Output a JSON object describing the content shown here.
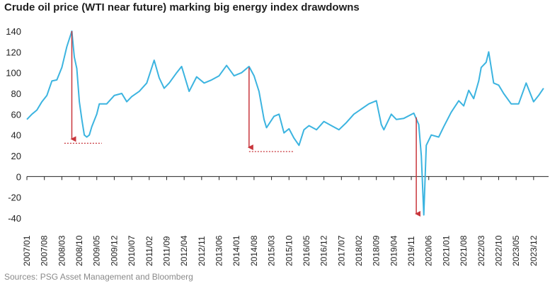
{
  "title": "Crude oil price (WTI near future) marking big energy index drawdowns",
  "source": "Sources: PSG Asset Management and Bloomberg",
  "colors": {
    "series": "#3cb4e0",
    "annotation": "#c8363c",
    "zero_line": "#222222",
    "grid": "#d9d9d9"
  },
  "chart_data": {
    "type": "line",
    "title": "Crude oil price (WTI near future) marking big energy index drawdowns",
    "xlabel": "",
    "ylabel": "",
    "ylim": [
      -40,
      140
    ],
    "y_ticks": [
      140,
      120,
      100,
      80,
      60,
      40,
      20,
      0,
      -20,
      -40
    ],
    "x_tick_labels": [
      "2007/01",
      "2007/08",
      "2008/03",
      "2008/10",
      "2009/05",
      "2009/12",
      "2010/07",
      "2011/02",
      "2011/09",
      "2012/04",
      "2012/11",
      "2013/06",
      "2014/01",
      "2014/08",
      "2015/03",
      "2015/10",
      "2016/05",
      "2016/12",
      "2017/07",
      "2018/02",
      "2018/09",
      "2019/04",
      "2019/11",
      "2020/06",
      "2021/01",
      "2021/08",
      "2022/03",
      "2022/10",
      "2023/05",
      "2023/12"
    ],
    "grid": false,
    "series": [
      {
        "values": [
          [
            "2007/01",
            55
          ],
          [
            "2007/03",
            60
          ],
          [
            "2007/05",
            64
          ],
          [
            "2007/07",
            72
          ],
          [
            "2007/09",
            78
          ],
          [
            "2007/11",
            92
          ],
          [
            "2008/01",
            93
          ],
          [
            "2008/03",
            105
          ],
          [
            "2008/05",
            125
          ],
          [
            "2008/07",
            140
          ],
          [
            "2008/08",
            115
          ],
          [
            "2008/09",
            104
          ],
          [
            "2008/10",
            72
          ],
          [
            "2008/11",
            55
          ],
          [
            "2008/12",
            40
          ],
          [
            "2009/01",
            38
          ],
          [
            "2009/02",
            40
          ],
          [
            "2009/03",
            48
          ],
          [
            "2009/05",
            60
          ],
          [
            "2009/06",
            70
          ],
          [
            "2009/09",
            70
          ],
          [
            "2009/12",
            78
          ],
          [
            "2010/03",
            80
          ],
          [
            "2010/05",
            72
          ],
          [
            "2010/07",
            77
          ],
          [
            "2010/10",
            82
          ],
          [
            "2011/01",
            90
          ],
          [
            "2011/04",
            112
          ],
          [
            "2011/06",
            95
          ],
          [
            "2011/08",
            85
          ],
          [
            "2011/10",
            90
          ],
          [
            "2012/01",
            100
          ],
          [
            "2012/03",
            106
          ],
          [
            "2012/06",
            82
          ],
          [
            "2012/09",
            96
          ],
          [
            "2012/12",
            90
          ],
          [
            "2013/03",
            93
          ],
          [
            "2013/06",
            97
          ],
          [
            "2013/09",
            107
          ],
          [
            "2013/12",
            97
          ],
          [
            "2014/03",
            100
          ],
          [
            "2014/06",
            106
          ],
          [
            "2014/08",
            97
          ],
          [
            "2014/10",
            82
          ],
          [
            "2014/12",
            55
          ],
          [
            "2015/01",
            47
          ],
          [
            "2015/04",
            58
          ],
          [
            "2015/06",
            60
          ],
          [
            "2015/08",
            42
          ],
          [
            "2015/10",
            46
          ],
          [
            "2015/12",
            37
          ],
          [
            "2016/02",
            30
          ],
          [
            "2016/04",
            45
          ],
          [
            "2016/06",
            49
          ],
          [
            "2016/09",
            45
          ],
          [
            "2016/12",
            53
          ],
          [
            "2017/03",
            49
          ],
          [
            "2017/06",
            45
          ],
          [
            "2017/09",
            52
          ],
          [
            "2017/12",
            60
          ],
          [
            "2018/03",
            65
          ],
          [
            "2018/06",
            70
          ],
          [
            "2018/09",
            73
          ],
          [
            "2018/11",
            50
          ],
          [
            "2018/12",
            45
          ],
          [
            "2019/03",
            60
          ],
          [
            "2019/05",
            55
          ],
          [
            "2019/08",
            56
          ],
          [
            "2019/12",
            61
          ],
          [
            "2020/02",
            50
          ],
          [
            "2020/03",
            20
          ],
          [
            "2020/04",
            -37
          ],
          [
            "2020/05",
            30
          ],
          [
            "2020/07",
            40
          ],
          [
            "2020/10",
            38
          ],
          [
            "2020/12",
            48
          ],
          [
            "2021/03",
            62
          ],
          [
            "2021/06",
            73
          ],
          [
            "2021/08",
            68
          ],
          [
            "2021/10",
            83
          ],
          [
            "2021/12",
            75
          ],
          [
            "2022/02",
            92
          ],
          [
            "2022/03",
            105
          ],
          [
            "2022/05",
            110
          ],
          [
            "2022/06",
            120
          ],
          [
            "2022/08",
            90
          ],
          [
            "2022/10",
            88
          ],
          [
            "2022/12",
            80
          ],
          [
            "2023/03",
            70
          ],
          [
            "2023/06",
            70
          ],
          [
            "2023/09",
            90
          ],
          [
            "2023/12",
            72
          ],
          [
            "2024/02",
            78
          ],
          [
            "2024/04",
            85
          ]
        ]
      }
    ],
    "annotations": [
      {
        "from": [
          "2008/07",
          140
        ],
        "to": [
          "2008/07",
          32
        ],
        "baseline": [
          [
            "2008/04",
            32
          ],
          [
            "2009/07",
            32
          ]
        ]
      },
      {
        "from": [
          "2014/06",
          105
        ],
        "to": [
          "2014/06",
          24
        ],
        "baseline": [
          [
            "2014/06",
            24
          ],
          [
            "2015/12",
            24
          ]
        ]
      },
      {
        "from": [
          "2020/01",
          57
        ],
        "to": [
          "2020/01",
          -40
        ]
      }
    ]
  }
}
